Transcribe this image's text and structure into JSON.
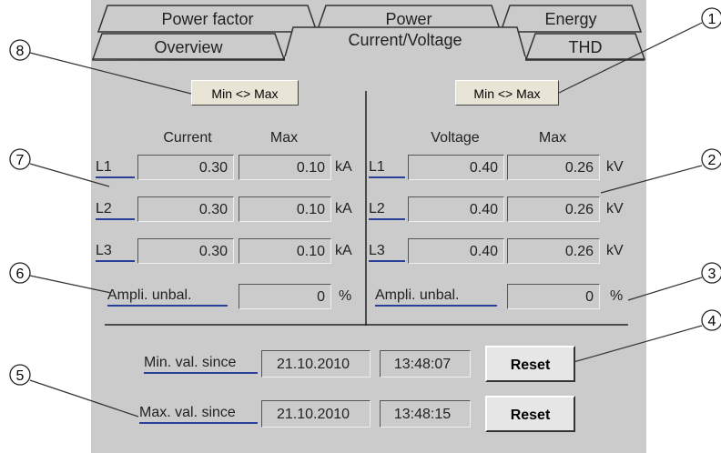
{
  "tabs": {
    "row1": [
      "Power factor",
      "Power",
      "Energy"
    ],
    "row2": [
      "Overview",
      "Current/Voltage",
      "THD"
    ]
  },
  "current": {
    "button": "Min <> Max",
    "headers": [
      "Current",
      "Max"
    ],
    "unit": "kA",
    "rows": [
      {
        "label": "L1",
        "value": "0.30",
        "max": "0.10"
      },
      {
        "label": "L2",
        "value": "0.30",
        "max": "0.10"
      },
      {
        "label": "L3",
        "value": "0.30",
        "max": "0.10"
      }
    ],
    "unbalance": {
      "label": "Ampli. unbal.",
      "value": "0",
      "unit": "%"
    }
  },
  "voltage": {
    "button": "Min <> Max",
    "headers": [
      "Voltage",
      "Max"
    ],
    "unit": "kV",
    "rows": [
      {
        "label": "L1",
        "value": "0.40",
        "max": "0.26"
      },
      {
        "label": "L2",
        "value": "0.40",
        "max": "0.26"
      },
      {
        "label": "L3",
        "value": "0.40",
        "max": "0.26"
      }
    ],
    "unbalance": {
      "label": "Ampli. unbal.",
      "value": "0",
      "unit": "%"
    }
  },
  "since": [
    {
      "label": "Min. val. since",
      "date": "21.10.2010",
      "time": "13:48:07",
      "button": "Reset"
    },
    {
      "label": "Max. val. since",
      "date": "21.10.2010",
      "time": "13:48:15",
      "button": "Reset"
    }
  ],
  "callouts": [
    "1",
    "2",
    "3",
    "4",
    "5",
    "6",
    "7",
    "8"
  ]
}
